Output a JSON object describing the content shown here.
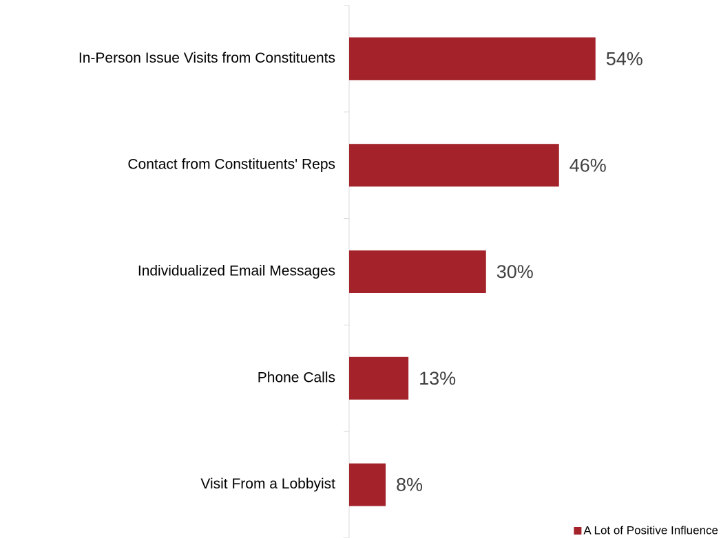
{
  "chart_data": {
    "type": "bar",
    "orientation": "horizontal",
    "categories": [
      "In-Person Issue Visits from Constituents",
      "Contact from Constituents' Reps",
      "Individualized Email Messages",
      "Phone Calls",
      "Visit From a Lobbyist"
    ],
    "series": [
      {
        "name": "A Lot of Positive Influence",
        "color": "#a4232a",
        "values": [
          54,
          46,
          30,
          13,
          8
        ],
        "value_labels": [
          "54%",
          "46%",
          "30%",
          "13%",
          "8%"
        ]
      }
    ],
    "xlim": [
      0,
      80
    ],
    "legend": "bottom-right"
  }
}
